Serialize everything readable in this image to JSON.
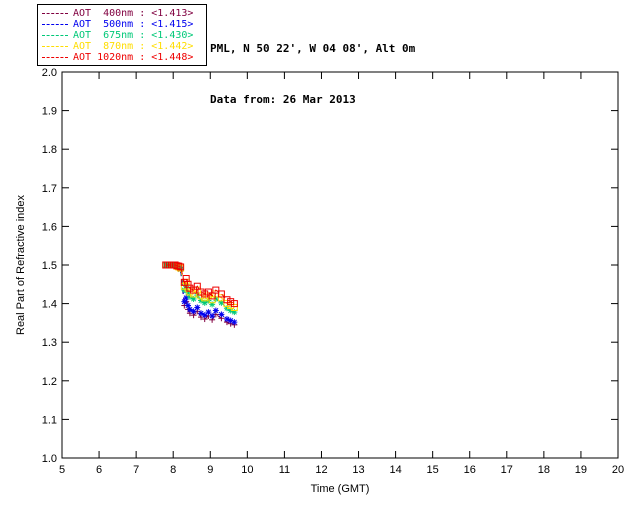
{
  "header": {
    "line1": "PML, N 50 22', W 04 08', Alt 0m",
    "line2": "Data from: 26 Mar 2013"
  },
  "legend": {
    "items": [
      {
        "label": "AOT  400nm : <1.413>",
        "color": "#800040"
      },
      {
        "label": "AOT  500nm : <1.415>",
        "color": "#0000EE"
      },
      {
        "label": "AOT  675nm : <1.430>",
        "color": "#00C878"
      },
      {
        "label": "AOT  870nm : <1.442>",
        "color": "#FFDD00"
      },
      {
        "label": "AOT 1020nm : <1.448>",
        "color": "#EE0000"
      }
    ]
  },
  "chart_data": {
    "type": "line",
    "title": "",
    "xlabel": "Time (GMT)",
    "ylabel": "Real Part of Refractive index",
    "xlim": [
      5,
      20
    ],
    "ylim": [
      1.0,
      2.0
    ],
    "xticks": [
      5,
      6,
      7,
      8,
      9,
      10,
      11,
      12,
      13,
      14,
      15,
      16,
      17,
      18,
      19,
      20
    ],
    "yticks": [
      1.0,
      1.1,
      1.2,
      1.3,
      1.4,
      1.5,
      1.6,
      1.7,
      1.8,
      1.9,
      2.0
    ],
    "grid": false,
    "legend_position": "top-left",
    "x": [
      7.8,
      7.85,
      7.9,
      7.95,
      8.0,
      8.05,
      8.1,
      8.15,
      8.2,
      8.3,
      8.35,
      8.4,
      8.45,
      8.55,
      8.65,
      8.75,
      8.85,
      8.95,
      9.05,
      9.15,
      9.3,
      9.45,
      9.55,
      9.65
    ],
    "series": [
      {
        "name": "AOT 400nm",
        "mean": "<1.413>",
        "color": "#800040",
        "marker": "plus",
        "values": [
          1.5,
          1.5,
          1.5,
          1.5,
          1.5,
          1.5,
          1.494,
          1.491,
          1.487,
          1.395,
          1.405,
          1.385,
          1.375,
          1.37,
          1.38,
          1.365,
          1.36,
          1.368,
          1.358,
          1.372,
          1.362,
          1.352,
          1.348,
          1.345
        ]
      },
      {
        "name": "AOT 500nm",
        "mean": "<1.415>",
        "color": "#0000EE",
        "marker": "asterisk",
        "values": [
          1.5,
          1.5,
          1.5,
          1.5,
          1.5,
          1.5,
          1.495,
          1.492,
          1.488,
          1.405,
          1.415,
          1.395,
          1.385,
          1.38,
          1.39,
          1.375,
          1.37,
          1.378,
          1.368,
          1.382,
          1.372,
          1.36,
          1.356,
          1.352
        ]
      },
      {
        "name": "AOT 675nm",
        "mean": "<1.430>",
        "color": "#00C878",
        "marker": "asterisk",
        "values": [
          1.5,
          1.5,
          1.5,
          1.5,
          1.5,
          1.5,
          1.496,
          1.493,
          1.49,
          1.435,
          1.445,
          1.428,
          1.418,
          1.412,
          1.422,
          1.408,
          1.402,
          1.408,
          1.398,
          1.412,
          1.402,
          1.388,
          1.382,
          1.378
        ]
      },
      {
        "name": "AOT 870nm",
        "mean": "<1.442>",
        "color": "#FFDD00",
        "marker": "square",
        "values": [
          1.5,
          1.5,
          1.5,
          1.5,
          1.5,
          1.5,
          1.497,
          1.495,
          1.492,
          1.445,
          1.455,
          1.44,
          1.43,
          1.425,
          1.435,
          1.42,
          1.415,
          1.42,
          1.41,
          1.425,
          1.415,
          1.4,
          1.395,
          1.39
        ]
      },
      {
        "name": "AOT 1020nm",
        "mean": "<1.448>",
        "color": "#EE0000",
        "marker": "square",
        "values": [
          1.5,
          1.5,
          1.5,
          1.5,
          1.5,
          1.5,
          1.498,
          1.497,
          1.495,
          1.455,
          1.465,
          1.45,
          1.44,
          1.435,
          1.445,
          1.43,
          1.425,
          1.43,
          1.42,
          1.435,
          1.425,
          1.41,
          1.405,
          1.4
        ]
      }
    ]
  }
}
